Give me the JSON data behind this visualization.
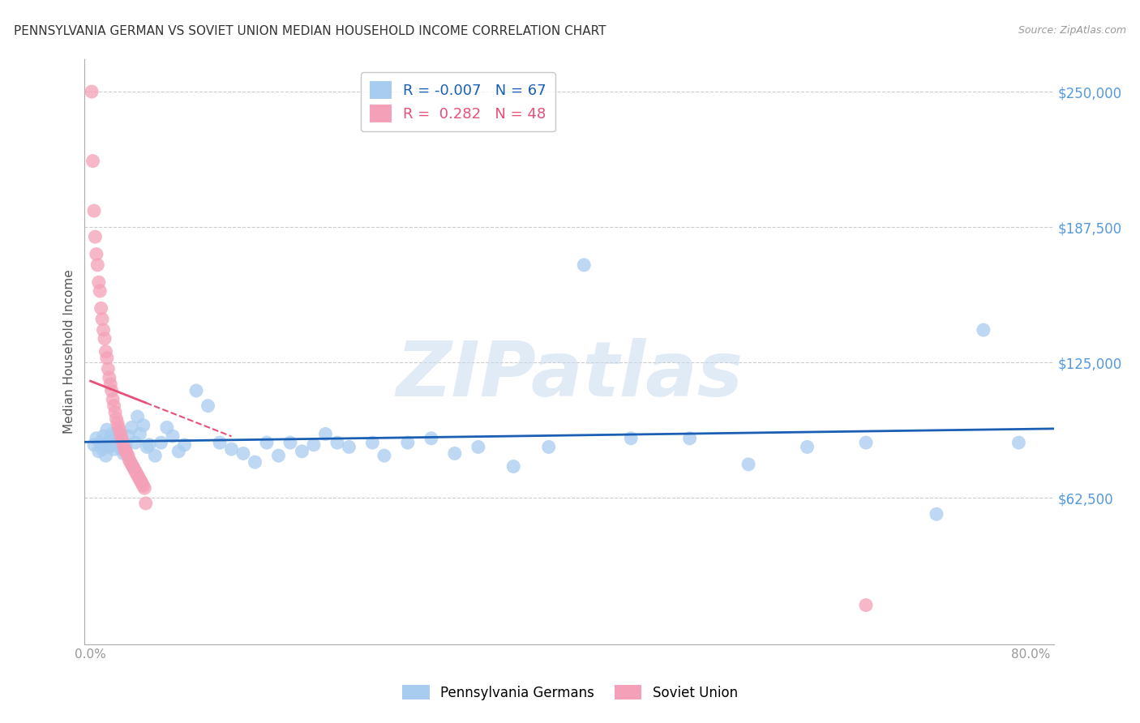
{
  "title": "PENNSYLVANIA GERMAN VS SOVIET UNION MEDIAN HOUSEHOLD INCOME CORRELATION CHART",
  "source": "Source: ZipAtlas.com",
  "ylabel": "Median Household Income",
  "xlim": [
    -0.005,
    0.82
  ],
  "ylim": [
    -5000,
    265000
  ],
  "yticks": [
    62500,
    125000,
    187500,
    250000
  ],
  "ytick_labels": [
    "$62,500",
    "$125,000",
    "$187,500",
    "$250,000"
  ],
  "xticks": [
    0.0,
    0.2,
    0.4,
    0.6,
    0.8
  ],
  "xtick_labels": [
    "0.0%",
    "",
    "",
    "",
    "80.0%"
  ],
  "blue_R": -0.007,
  "blue_N": 67,
  "pink_R": 0.282,
  "pink_N": 48,
  "blue_label": "Pennsylvania Germans",
  "pink_label": "Soviet Union",
  "blue_color": "#A8CCF0",
  "pink_color": "#F4A0B8",
  "blue_line_color": "#1A5FB4",
  "pink_line_color": "#E8507A",
  "background_color": "#FFFFFF",
  "grid_color": "#CCCCCC",
  "title_color": "#333333",
  "axis_label_color": "#555555",
  "ytick_label_color": "#5599DD",
  "watermark": "ZIPatlas",
  "blue_scatter_x": [
    0.003,
    0.005,
    0.007,
    0.008,
    0.01,
    0.011,
    0.012,
    0.013,
    0.014,
    0.015,
    0.016,
    0.017,
    0.018,
    0.019,
    0.02,
    0.021,
    0.022,
    0.023,
    0.025,
    0.026,
    0.028,
    0.03,
    0.032,
    0.035,
    0.038,
    0.04,
    0.042,
    0.045,
    0.048,
    0.05,
    0.055,
    0.06,
    0.065,
    0.07,
    0.075,
    0.08,
    0.09,
    0.1,
    0.11,
    0.12,
    0.13,
    0.14,
    0.15,
    0.16,
    0.17,
    0.18,
    0.19,
    0.2,
    0.21,
    0.22,
    0.24,
    0.25,
    0.27,
    0.29,
    0.31,
    0.33,
    0.36,
    0.39,
    0.42,
    0.46,
    0.51,
    0.56,
    0.61,
    0.66,
    0.72,
    0.76,
    0.79
  ],
  "blue_scatter_y": [
    87000,
    90000,
    84000,
    88000,
    85000,
    91000,
    87000,
    82000,
    94000,
    88000,
    86000,
    90000,
    92000,
    87000,
    85000,
    89000,
    88000,
    93000,
    87000,
    85000,
    83000,
    87000,
    91000,
    95000,
    88000,
    100000,
    92000,
    96000,
    86000,
    87000,
    82000,
    88000,
    95000,
    91000,
    84000,
    87000,
    112000,
    105000,
    88000,
    85000,
    83000,
    79000,
    88000,
    82000,
    88000,
    84000,
    87000,
    92000,
    88000,
    86000,
    88000,
    82000,
    88000,
    90000,
    83000,
    86000,
    77000,
    86000,
    170000,
    90000,
    90000,
    78000,
    86000,
    88000,
    55000,
    140000,
    88000
  ],
  "pink_scatter_x": [
    0.001,
    0.002,
    0.003,
    0.004,
    0.005,
    0.006,
    0.007,
    0.008,
    0.009,
    0.01,
    0.011,
    0.012,
    0.013,
    0.014,
    0.015,
    0.016,
    0.017,
    0.018,
    0.019,
    0.02,
    0.021,
    0.022,
    0.023,
    0.024,
    0.025,
    0.026,
    0.027,
    0.028,
    0.029,
    0.03,
    0.031,
    0.032,
    0.033,
    0.034,
    0.035,
    0.036,
    0.037,
    0.038,
    0.039,
    0.04,
    0.041,
    0.042,
    0.043,
    0.044,
    0.045,
    0.046,
    0.047,
    0.66
  ],
  "pink_scatter_y": [
    250000,
    218000,
    195000,
    183000,
    175000,
    170000,
    162000,
    158000,
    150000,
    145000,
    140000,
    136000,
    130000,
    127000,
    122000,
    118000,
    115000,
    112000,
    108000,
    105000,
    102000,
    99000,
    97000,
    95000,
    93000,
    91000,
    89000,
    87000,
    85000,
    84000,
    83000,
    82000,
    80000,
    79000,
    78000,
    77000,
    76000,
    75000,
    74000,
    73000,
    72000,
    71000,
    70000,
    69000,
    68000,
    67000,
    60000,
    13000
  ],
  "pink_solid_xrange": [
    0.001,
    0.047
  ],
  "pink_dash_xrange": [
    0.0,
    0.001
  ]
}
